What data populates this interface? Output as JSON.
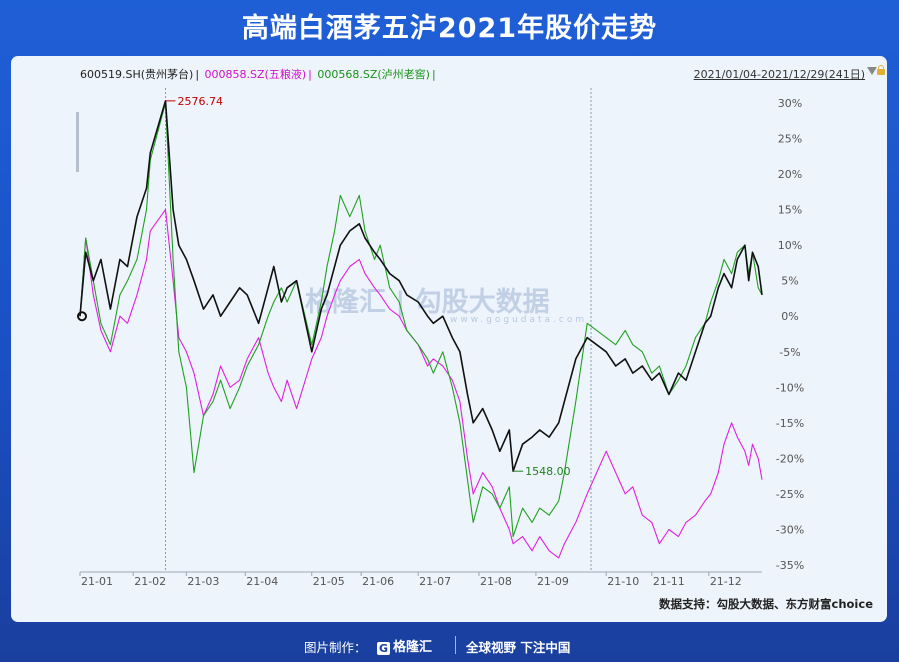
{
  "title": "高端白酒茅五泸2021年股价走势",
  "legend": {
    "maotai": "600519.SH(贵州茅台)",
    "sep": "|",
    "wuliangye": "000858.SZ(五粮液)",
    "luzhou": "000568.SZ(泸州老窖)"
  },
  "date_range": "2021/01/04-2021/12/29(241日)",
  "source": "数据支持：勾股大数据、东方财富choice",
  "footer": {
    "made_by": "图片制作：",
    "logo": "格隆汇",
    "slogan": "全球视野 下注中国"
  },
  "watermark": {
    "cn": "格隆汇 | 勾股大数据",
    "url": "www.gogudata.com"
  },
  "colors": {
    "maotai": "#111111",
    "wuliangye": "#e020e0",
    "luzhou": "#20a020",
    "high_label": "#c00000",
    "low_label": "#208020"
  },
  "chart_data": {
    "type": "line",
    "title": "高端白酒茅五泸2021年股价走势",
    "x_tick_labels": [
      "21-01",
      "21-02",
      "21-03",
      "21-04",
      "21-05",
      "21-06",
      "21-07",
      "21-08",
      "21-09",
      "21-10",
      "21-11",
      "21-12"
    ],
    "y_tick_labels": [
      "30%",
      "25%",
      "20%",
      "15%",
      "10%",
      "5%",
      "0%",
      "-5%",
      "-10%",
      "-15%",
      "-20%",
      "-25%",
      "-30%",
      "-35%"
    ],
    "ylim": [
      -35,
      30
    ],
    "grid": false,
    "annotations": [
      {
        "text": "2576.74",
        "series": "600519.SH(贵州茅台)",
        "x": "2021-02-18",
        "y": 30.3
      },
      {
        "text": "1548.00",
        "series": "600519.SH(贵州茅台)",
        "x": "2021-08-20",
        "y": -21.8
      }
    ],
    "series": [
      {
        "name": "600519.SH(贵州茅台)",
        "color": "#111111",
        "points": [
          [
            "2021-01-04",
            0
          ],
          [
            "2021-01-07",
            9
          ],
          [
            "2021-01-11",
            5
          ],
          [
            "2021-01-15",
            8
          ],
          [
            "2021-01-20",
            1
          ],
          [
            "2021-01-25",
            8
          ],
          [
            "2021-01-29",
            7
          ],
          [
            "2021-02-03",
            14
          ],
          [
            "2021-02-08",
            18
          ],
          [
            "2021-02-10",
            23
          ],
          [
            "2021-02-18",
            30.3
          ],
          [
            "2021-02-22",
            15
          ],
          [
            "2021-02-25",
            10
          ],
          [
            "2021-03-01",
            8
          ],
          [
            "2021-03-05",
            5
          ],
          [
            "2021-03-10",
            1
          ],
          [
            "2021-03-15",
            3
          ],
          [
            "2021-03-19",
            0
          ],
          [
            "2021-03-24",
            2
          ],
          [
            "2021-03-29",
            4
          ],
          [
            "2021-04-02",
            3
          ],
          [
            "2021-04-08",
            -1
          ],
          [
            "2021-04-13",
            4
          ],
          [
            "2021-04-16",
            7
          ],
          [
            "2021-04-20",
            2
          ],
          [
            "2021-04-23",
            4
          ],
          [
            "2021-04-28",
            5
          ],
          [
            "2021-05-06",
            -5
          ],
          [
            "2021-05-11",
            1
          ],
          [
            "2021-05-14",
            3
          ],
          [
            "2021-05-18",
            7
          ],
          [
            "2021-05-21",
            10
          ],
          [
            "2021-05-26",
            12
          ],
          [
            "2021-05-31",
            13
          ],
          [
            "2021-06-03",
            11
          ],
          [
            "2021-06-08",
            9
          ],
          [
            "2021-06-11",
            8
          ],
          [
            "2021-06-16",
            6
          ],
          [
            "2021-06-21",
            5
          ],
          [
            "2021-06-25",
            3
          ],
          [
            "2021-07-01",
            2
          ],
          [
            "2021-07-06",
            0
          ],
          [
            "2021-07-09",
            -1
          ],
          [
            "2021-07-14",
            0
          ],
          [
            "2021-07-19",
            -3
          ],
          [
            "2021-07-23",
            -5
          ],
          [
            "2021-07-27",
            -11
          ],
          [
            "2021-07-30",
            -15
          ],
          [
            "2021-08-04",
            -13
          ],
          [
            "2021-08-09",
            -16
          ],
          [
            "2021-08-13",
            -19
          ],
          [
            "2021-08-18",
            -16
          ],
          [
            "2021-08-20",
            -21.8
          ],
          [
            "2021-08-25",
            -18
          ],
          [
            "2021-08-30",
            -17
          ],
          [
            "2021-09-03",
            -16
          ],
          [
            "2021-09-08",
            -17
          ],
          [
            "2021-09-13",
            -15
          ],
          [
            "2021-09-16",
            -12
          ],
          [
            "2021-09-22",
            -6
          ],
          [
            "2021-09-28",
            -3
          ],
          [
            "2021-10-08",
            -5
          ],
          [
            "2021-10-13",
            -7
          ],
          [
            "2021-10-18",
            -6
          ],
          [
            "2021-10-22",
            -8
          ],
          [
            "2021-10-27",
            -7
          ],
          [
            "2021-11-01",
            -9
          ],
          [
            "2021-11-05",
            -8
          ],
          [
            "2021-11-10",
            -11
          ],
          [
            "2021-11-15",
            -8
          ],
          [
            "2021-11-19",
            -9
          ],
          [
            "2021-11-24",
            -5
          ],
          [
            "2021-11-29",
            -1
          ],
          [
            "2021-12-02",
            0
          ],
          [
            "2021-12-06",
            4
          ],
          [
            "2021-12-09",
            6
          ],
          [
            "2021-12-13",
            4
          ],
          [
            "2021-12-16",
            8
          ],
          [
            "2021-12-20",
            10
          ],
          [
            "2021-12-22",
            5
          ],
          [
            "2021-12-24",
            9
          ],
          [
            "2021-12-27",
            7
          ],
          [
            "2021-12-29",
            3
          ]
        ]
      },
      {
        "name": "000858.SZ(五粮液)",
        "color": "#e020e0",
        "points": [
          [
            "2021-01-04",
            0
          ],
          [
            "2021-01-07",
            11
          ],
          [
            "2021-01-11",
            3
          ],
          [
            "2021-01-15",
            -2
          ],
          [
            "2021-01-20",
            -5
          ],
          [
            "2021-01-25",
            0
          ],
          [
            "2021-01-29",
            -1
          ],
          [
            "2021-02-03",
            3
          ],
          [
            "2021-02-08",
            8
          ],
          [
            "2021-02-10",
            12
          ],
          [
            "2021-02-18",
            15
          ],
          [
            "2021-02-22",
            5
          ],
          [
            "2021-02-25",
            -3
          ],
          [
            "2021-03-01",
            -5
          ],
          [
            "2021-03-05",
            -8
          ],
          [
            "2021-03-10",
            -14
          ],
          [
            "2021-03-15",
            -11
          ],
          [
            "2021-03-19",
            -7
          ],
          [
            "2021-03-24",
            -10
          ],
          [
            "2021-03-29",
            -9
          ],
          [
            "2021-04-02",
            -6
          ],
          [
            "2021-04-08",
            -3
          ],
          [
            "2021-04-13",
            -8
          ],
          [
            "2021-04-16",
            -10
          ],
          [
            "2021-04-20",
            -12
          ],
          [
            "2021-04-23",
            -9
          ],
          [
            "2021-04-28",
            -13
          ],
          [
            "2021-05-06",
            -6
          ],
          [
            "2021-05-11",
            -3
          ],
          [
            "2021-05-14",
            0
          ],
          [
            "2021-05-18",
            3
          ],
          [
            "2021-05-21",
            5
          ],
          [
            "2021-05-26",
            7
          ],
          [
            "2021-05-31",
            8
          ],
          [
            "2021-06-03",
            6
          ],
          [
            "2021-06-08",
            4
          ],
          [
            "2021-06-11",
            3
          ],
          [
            "2021-06-16",
            1
          ],
          [
            "2021-06-21",
            0
          ],
          [
            "2021-06-25",
            -2
          ],
          [
            "2021-07-01",
            -4
          ],
          [
            "2021-07-06",
            -7
          ],
          [
            "2021-07-09",
            -6
          ],
          [
            "2021-07-14",
            -7
          ],
          [
            "2021-07-19",
            -9
          ],
          [
            "2021-07-23",
            -12
          ],
          [
            "2021-07-27",
            -20
          ],
          [
            "2021-07-30",
            -25
          ],
          [
            "2021-08-04",
            -22
          ],
          [
            "2021-08-09",
            -24
          ],
          [
            "2021-08-13",
            -27
          ],
          [
            "2021-08-18",
            -30
          ],
          [
            "2021-08-20",
            -32
          ],
          [
            "2021-08-25",
            -31
          ],
          [
            "2021-08-30",
            -33
          ],
          [
            "2021-09-03",
            -31
          ],
          [
            "2021-09-08",
            -33
          ],
          [
            "2021-09-13",
            -34
          ],
          [
            "2021-09-16",
            -32
          ],
          [
            "2021-09-22",
            -29
          ],
          [
            "2021-09-28",
            -25
          ],
          [
            "2021-10-08",
            -19
          ],
          [
            "2021-10-13",
            -22
          ],
          [
            "2021-10-18",
            -25
          ],
          [
            "2021-10-22",
            -24
          ],
          [
            "2021-10-27",
            -28
          ],
          [
            "2021-11-01",
            -29
          ],
          [
            "2021-11-05",
            -32
          ],
          [
            "2021-11-10",
            -30
          ],
          [
            "2021-11-15",
            -31
          ],
          [
            "2021-11-19",
            -29
          ],
          [
            "2021-11-24",
            -28
          ],
          [
            "2021-11-29",
            -26
          ],
          [
            "2021-12-02",
            -25
          ],
          [
            "2021-12-06",
            -22
          ],
          [
            "2021-12-09",
            -18
          ],
          [
            "2021-12-13",
            -15
          ],
          [
            "2021-12-16",
            -17
          ],
          [
            "2021-12-20",
            -19
          ],
          [
            "2021-12-22",
            -21
          ],
          [
            "2021-12-24",
            -18
          ],
          [
            "2021-12-27",
            -20
          ],
          [
            "2021-12-29",
            -23
          ]
        ]
      },
      {
        "name": "000568.SZ(泸州老窖)",
        "color": "#20a020",
        "points": [
          [
            "2021-01-04",
            0
          ],
          [
            "2021-01-07",
            11
          ],
          [
            "2021-01-11",
            5
          ],
          [
            "2021-01-15",
            -1
          ],
          [
            "2021-01-20",
            -4
          ],
          [
            "2021-01-25",
            3
          ],
          [
            "2021-01-29",
            5
          ],
          [
            "2021-02-03",
            8
          ],
          [
            "2021-02-08",
            15
          ],
          [
            "2021-02-10",
            22
          ],
          [
            "2021-02-18",
            30
          ],
          [
            "2021-02-22",
            8
          ],
          [
            "2021-02-25",
            -5
          ],
          [
            "2021-03-01",
            -10
          ],
          [
            "2021-03-05",
            -22
          ],
          [
            "2021-03-10",
            -14
          ],
          [
            "2021-03-15",
            -12
          ],
          [
            "2021-03-19",
            -9
          ],
          [
            "2021-03-24",
            -13
          ],
          [
            "2021-03-29",
            -10
          ],
          [
            "2021-04-02",
            -7
          ],
          [
            "2021-04-08",
            -4
          ],
          [
            "2021-04-13",
            0
          ],
          [
            "2021-04-16",
            2
          ],
          [
            "2021-04-20",
            4
          ],
          [
            "2021-04-23",
            2
          ],
          [
            "2021-04-28",
            5
          ],
          [
            "2021-05-06",
            -4
          ],
          [
            "2021-05-11",
            2
          ],
          [
            "2021-05-14",
            7
          ],
          [
            "2021-05-18",
            12
          ],
          [
            "2021-05-21",
            17
          ],
          [
            "2021-05-26",
            14
          ],
          [
            "2021-05-31",
            17
          ],
          [
            "2021-06-03",
            12
          ],
          [
            "2021-06-08",
            8
          ],
          [
            "2021-06-11",
            10
          ],
          [
            "2021-06-16",
            4
          ],
          [
            "2021-06-21",
            2
          ],
          [
            "2021-06-25",
            -2
          ],
          [
            "2021-07-01",
            -4
          ],
          [
            "2021-07-06",
            -6
          ],
          [
            "2021-07-09",
            -8
          ],
          [
            "2021-07-14",
            -5
          ],
          [
            "2021-07-19",
            -10
          ],
          [
            "2021-07-23",
            -15
          ],
          [
            "2021-07-27",
            -23
          ],
          [
            "2021-07-30",
            -29
          ],
          [
            "2021-08-04",
            -24
          ],
          [
            "2021-08-09",
            -25
          ],
          [
            "2021-08-13",
            -27
          ],
          [
            "2021-08-18",
            -24
          ],
          [
            "2021-08-20",
            -31
          ],
          [
            "2021-08-25",
            -27
          ],
          [
            "2021-08-30",
            -29
          ],
          [
            "2021-09-03",
            -27
          ],
          [
            "2021-09-08",
            -28
          ],
          [
            "2021-09-13",
            -26
          ],
          [
            "2021-09-16",
            -22
          ],
          [
            "2021-09-22",
            -12
          ],
          [
            "2021-09-28",
            -1
          ],
          [
            "2021-10-08",
            -3
          ],
          [
            "2021-10-13",
            -4
          ],
          [
            "2021-10-18",
            -2
          ],
          [
            "2021-10-22",
            -4
          ],
          [
            "2021-10-27",
            -5
          ],
          [
            "2021-11-01",
            -8
          ],
          [
            "2021-11-05",
            -7
          ],
          [
            "2021-11-10",
            -11
          ],
          [
            "2021-11-15",
            -9
          ],
          [
            "2021-11-19",
            -7
          ],
          [
            "2021-11-24",
            -3
          ],
          [
            "2021-11-29",
            -1
          ],
          [
            "2021-12-02",
            2
          ],
          [
            "2021-12-06",
            5
          ],
          [
            "2021-12-09",
            8
          ],
          [
            "2021-12-13",
            6
          ],
          [
            "2021-12-16",
            9
          ],
          [
            "2021-12-20",
            10
          ],
          [
            "2021-12-22",
            6
          ],
          [
            "2021-12-24",
            9
          ],
          [
            "2021-12-27",
            4
          ],
          [
            "2021-12-29",
            3
          ]
        ]
      }
    ]
  }
}
